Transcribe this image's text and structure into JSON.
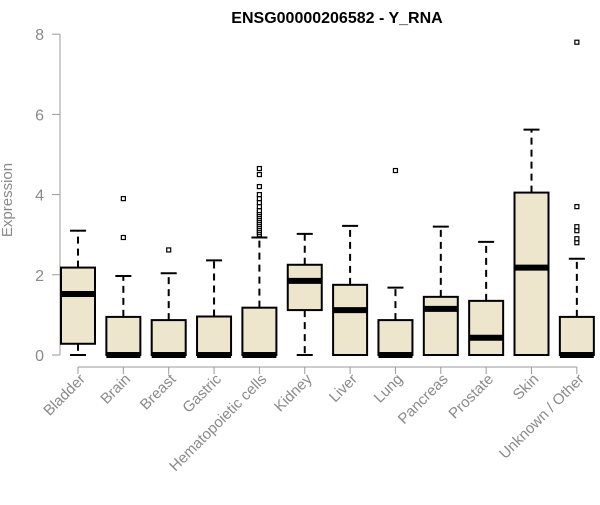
{
  "chart_data": {
    "type": "boxplot",
    "title": "ENSG00000206582 - Y_RNA",
    "ylabel": "Expression",
    "xlabel": "",
    "ylim": [
      0,
      8
    ],
    "yticks": [
      0,
      2,
      4,
      6,
      8
    ],
    "grid": false,
    "legend": "none",
    "colors": {
      "box_fill": "#ede6cc",
      "stroke": "#000000",
      "axis": "#9a9a9a",
      "tick_label": "#8a8a8a",
      "title": "#000000"
    },
    "categories": [
      "Bladder",
      "Brain",
      "Breast",
      "Gastric",
      "Hematopoietic cells",
      "Kidney",
      "Liver",
      "Lung",
      "Pancreas",
      "Prostate",
      "Skin",
      "Unknown / Other"
    ],
    "boxes": [
      {
        "min": 0.0,
        "q1": 0.28,
        "median": 1.52,
        "q3": 2.18,
        "max": 3.1,
        "outliers": []
      },
      {
        "min": 0.0,
        "q1": 0.0,
        "median": 0.0,
        "q3": 0.95,
        "max": 1.97,
        "outliers": [
          2.93,
          3.9
        ]
      },
      {
        "min": 0.0,
        "q1": 0.0,
        "median": 0.0,
        "q3": 0.87,
        "max": 2.04,
        "outliers": [
          2.62
        ]
      },
      {
        "min": 0.0,
        "q1": 0.0,
        "median": 0.0,
        "q3": 0.96,
        "max": 2.36,
        "outliers": []
      },
      {
        "min": 0.0,
        "q1": 0.0,
        "median": 0.0,
        "q3": 1.18,
        "max": 2.93,
        "outliers": [
          3.0,
          3.05,
          3.1,
          3.15,
          3.2,
          3.25,
          3.3,
          3.35,
          3.4,
          3.45,
          3.5,
          3.55,
          3.6,
          3.7,
          3.8,
          3.9,
          4.0,
          4.2,
          4.5,
          4.65
        ]
      },
      {
        "min": 0.0,
        "q1": 1.12,
        "median": 1.85,
        "q3": 2.25,
        "max": 3.02,
        "outliers": []
      },
      {
        "min": 0.0,
        "q1": 0.0,
        "median": 1.12,
        "q3": 1.75,
        "max": 3.22,
        "outliers": []
      },
      {
        "min": 0.0,
        "q1": 0.0,
        "median": 0.0,
        "q3": 0.87,
        "max": 1.68,
        "outliers": [
          4.6
        ]
      },
      {
        "min": 0.0,
        "q1": 0.0,
        "median": 1.15,
        "q3": 1.45,
        "max": 3.2,
        "outliers": []
      },
      {
        "min": 0.0,
        "q1": 0.0,
        "median": 0.43,
        "q3": 1.35,
        "max": 2.82,
        "outliers": []
      },
      {
        "min": 0.0,
        "q1": 0.0,
        "median": 2.18,
        "q3": 4.05,
        "max": 5.62,
        "outliers": []
      },
      {
        "min": 0.0,
        "q1": 0.0,
        "median": 0.0,
        "q3": 0.95,
        "max": 2.4,
        "outliers": [
          2.8,
          2.9,
          3.1,
          3.2,
          3.7,
          7.8
        ]
      }
    ]
  }
}
